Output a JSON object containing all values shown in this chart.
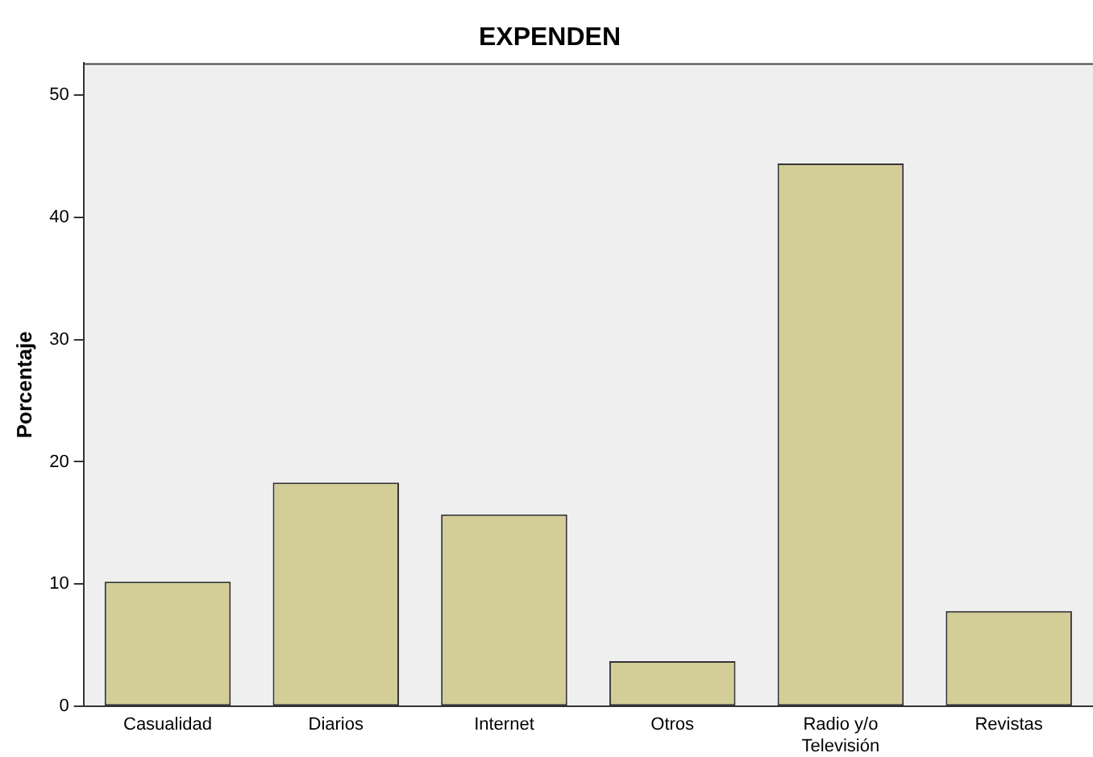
{
  "chart_data": {
    "type": "bar",
    "title": "EXPENDEN",
    "ylabel": "Porcentaje",
    "categories": [
      "Casualidad",
      "Diarios",
      "Internet",
      "Otros",
      "Radio y/o Televisión",
      "Revistas"
    ],
    "values": [
      10.2,
      18.3,
      15.7,
      3.7,
      44.4,
      7.8
    ],
    "color": "#d3ce98",
    "ylim": [
      0,
      52.6
    ],
    "yticks": [
      0,
      10,
      20,
      30,
      40,
      50
    ],
    "grid": false,
    "legend": false
  }
}
